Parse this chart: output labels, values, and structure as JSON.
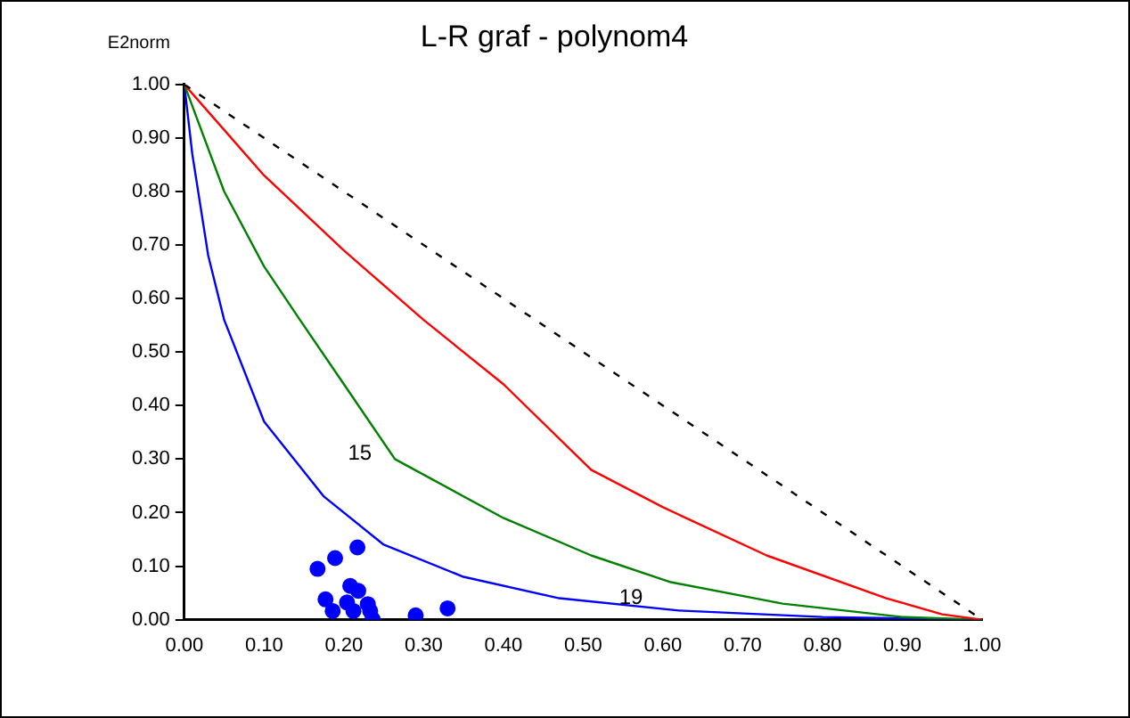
{
  "chart_data": {
    "type": "line",
    "title": "L-R graf - polynom4",
    "ylabel": "E2norm",
    "xlim": [
      0,
      1
    ],
    "ylim": [
      0,
      1
    ],
    "xticks": [
      {
        "value": 0,
        "label": "0.00"
      },
      {
        "value": 0.1,
        "label": "0.10"
      },
      {
        "value": 0.2,
        "label": "0.20"
      },
      {
        "value": 0.3,
        "label": "0.30"
      },
      {
        "value": 0.4,
        "label": "0.40"
      },
      {
        "value": 0.5,
        "label": "0.50"
      },
      {
        "value": 0.6,
        "label": "0.60"
      },
      {
        "value": 0.7,
        "label": "0.70"
      },
      {
        "value": 0.8,
        "label": "0.80"
      },
      {
        "value": 0.9,
        "label": "0.90"
      },
      {
        "value": 1,
        "label": "1.00"
      }
    ],
    "yticks": [
      {
        "value": 0,
        "label": "0.00"
      },
      {
        "value": 0.1,
        "label": "0.10"
      },
      {
        "value": 0.2,
        "label": "0.20"
      },
      {
        "value": 0.3,
        "label": "0.30"
      },
      {
        "value": 0.4,
        "label": "0.40"
      },
      {
        "value": 0.5,
        "label": "0.50"
      },
      {
        "value": 0.6,
        "label": "0.60"
      },
      {
        "value": 0.7,
        "label": "0.70"
      },
      {
        "value": 0.8,
        "label": "0.80"
      },
      {
        "value": 0.9,
        "label": "0.90"
      },
      {
        "value": 1,
        "label": "1.00"
      }
    ],
    "marker": "none",
    "series": [
      {
        "type": "line",
        "color": "#000000",
        "line_style": "dashed",
        "x": [
          0,
          1
        ],
        "values": [
          1,
          0
        ]
      },
      {
        "type": "line",
        "color": "#ff0000",
        "line_style": "solid",
        "x": [
          0,
          0.1,
          0.2,
          0.3,
          0.4,
          0.51,
          0.6,
          0.73,
          0.88,
          0.95,
          1
        ],
        "values": [
          1,
          0.83,
          0.69,
          0.56,
          0.44,
          0.28,
          0.21,
          0.12,
          0.04,
          0.01,
          0
        ]
      },
      {
        "type": "line",
        "color": "#008000",
        "line_style": "solid",
        "x": [
          0,
          0.05,
          0.1,
          0.145,
          0.2,
          0.264,
          0.4,
          0.51,
          0.61,
          0.75,
          0.9,
          1
        ],
        "values": [
          1,
          0.8,
          0.66,
          0.56,
          0.44,
          0.3,
          0.19,
          0.12,
          0.07,
          0.03,
          0.005,
          0
        ]
      },
      {
        "type": "line",
        "color": "#0000ff",
        "line_style": "solid",
        "x": [
          0,
          0.01,
          0.03,
          0.05,
          0.1,
          0.175,
          0.25,
          0.35,
          0.47,
          0.62,
          0.8,
          1
        ],
        "values": [
          1,
          0.87,
          0.68,
          0.56,
          0.37,
          0.23,
          0.14,
          0.08,
          0.04,
          0.017,
          0.005,
          0
        ]
      },
      {
        "type": "scatter",
        "color": "#0000ff",
        "marker": "circle",
        "x": [
          0.167,
          0.189,
          0.217,
          0.177,
          0.186,
          0.208,
          0.218,
          0.204,
          0.23,
          0.212,
          0.233,
          0.236,
          0.29,
          0.33
        ],
        "values": [
          0.095,
          0.115,
          0.135,
          0.038,
          0.016,
          0.063,
          0.054,
          0.032,
          0.029,
          0.016,
          0.016,
          0.001,
          0.008,
          0.021
        ]
      }
    ],
    "annotations": [
      "15",
      {
        "text": "19",
        "x": 0.56,
        "y": 0.04
      }
    ]
  }
}
